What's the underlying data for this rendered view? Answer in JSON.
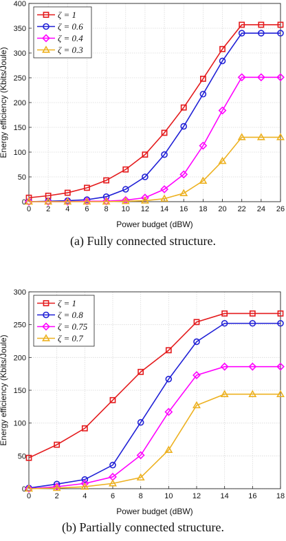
{
  "chart_data": [
    {
      "type": "line",
      "caption": "(a) Fully connected structure.",
      "xlabel": "Power budget (dBW)",
      "ylabel": "Energy efficiency (Kbits/Joule)",
      "xlim": [
        0,
        26
      ],
      "ylim": [
        0,
        400
      ],
      "xticks": [
        0,
        2,
        4,
        6,
        8,
        10,
        12,
        14,
        16,
        18,
        20,
        22,
        24,
        26
      ],
      "yticks": [
        0,
        50,
        100,
        150,
        200,
        250,
        300,
        350,
        400
      ],
      "grid": true,
      "legend_position": "top-left",
      "x": [
        0,
        2,
        4,
        6,
        8,
        10,
        12,
        14,
        16,
        18,
        20,
        22,
        24,
        26
      ],
      "series": [
        {
          "name": "ζ = 1",
          "color": "#e41a1c",
          "marker": "square",
          "values": [
            8,
            12,
            18,
            28,
            43,
            65,
            95,
            139,
            190,
            248,
            308,
            357,
            357,
            357
          ]
        },
        {
          "name": "ζ = 0.6",
          "color": "#1f1fd6",
          "marker": "circle",
          "values": [
            0,
            1,
            2,
            4,
            10,
            25,
            50,
            95,
            152,
            217,
            284,
            340,
            340,
            340
          ]
        },
        {
          "name": "ζ = 0.4",
          "color": "#ff00ff",
          "marker": "diamond",
          "values": [
            0,
            0,
            0,
            1,
            1,
            3,
            8,
            25,
            55,
            113,
            184,
            251,
            251,
            251
          ]
        },
        {
          "name": "ζ = 0.3",
          "color": "#edb120",
          "marker": "triangle",
          "values": [
            0,
            0,
            0,
            0,
            0,
            1,
            2,
            6,
            17,
            42,
            82,
            130,
            130,
            130
          ]
        }
      ]
    },
    {
      "type": "line",
      "caption": "(b) Partially connected structure.",
      "xlabel": "Power budget (dBW)",
      "ylabel": "Energy efficiency (Kbits/Joule)",
      "xlim": [
        0,
        18
      ],
      "ylim": [
        0,
        300
      ],
      "xticks": [
        0,
        2,
        4,
        6,
        8,
        10,
        12,
        14,
        16,
        18
      ],
      "yticks": [
        0,
        50,
        100,
        150,
        200,
        250,
        300
      ],
      "grid": true,
      "legend_position": "top-left",
      "x": [
        0,
        2,
        4,
        6,
        8,
        10,
        12,
        14,
        16,
        18
      ],
      "series": [
        {
          "name": "ζ = 1",
          "color": "#e41a1c",
          "marker": "square",
          "values": [
            47,
            67,
            92,
            135,
            178,
            211,
            254,
            267,
            267,
            267
          ]
        },
        {
          "name": "ζ = 0.8",
          "color": "#1f1fd6",
          "marker": "circle",
          "values": [
            1,
            7,
            14,
            36,
            101,
            167,
            224,
            252,
            252,
            252
          ]
        },
        {
          "name": "ζ = 0.75",
          "color": "#ff00ff",
          "marker": "diamond",
          "values": [
            0,
            3,
            8,
            18,
            51,
            117,
            173,
            186,
            186,
            186
          ]
        },
        {
          "name": "ζ = 0.7",
          "color": "#edb120",
          "marker": "triangle",
          "values": [
            0,
            1,
            3,
            8,
            17,
            59,
            127,
            144,
            144,
            144
          ]
        }
      ]
    }
  ]
}
